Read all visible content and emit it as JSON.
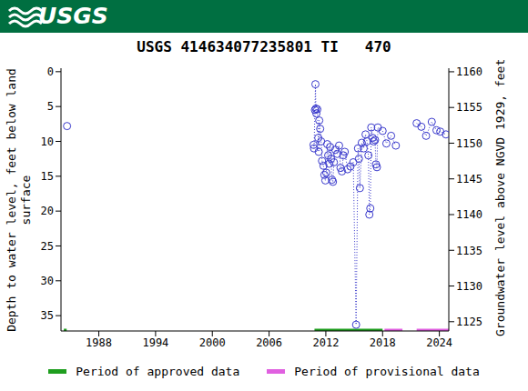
{
  "chart_data": {
    "type": "line",
    "logo": "USGS",
    "title": "USGS 414634077235801 TI   470",
    "ylabel": "Depth to water level, feet below land surface",
    "y2label": "Groundwater level above NGVD 1929, feet",
    "x": [
      1984.64,
      1984.64,
      2010.7,
      2010.75,
      2010.85,
      2010.9,
      2010.95,
      2011.0,
      2011.1,
      2011.2,
      2011.25,
      2011.3,
      2011.4,
      2011.5,
      2011.6,
      2011.75,
      2011.85,
      2011.95,
      2012.05,
      2012.15,
      2012.25,
      2012.35,
      2012.45,
      2012.55,
      2012.65,
      2012.75,
      2012.85,
      2013.0,
      2013.2,
      2013.4,
      2013.55,
      2013.7,
      2013.85,
      2014.0,
      2014.3,
      2014.6,
      2014.9,
      2015.2,
      2015.4,
      2015.5,
      2015.6,
      2015.8,
      2016.0,
      2016.2,
      2016.35,
      2016.5,
      2016.6,
      2016.7,
      2016.8,
      2016.95,
      2017.05,
      2017.2,
      2017.3,
      2017.4,
      2017.5,
      2018.0,
      2018.4,
      2018.9,
      2019.4,
      2019.4,
      2021.6,
      2022.1,
      2022.6,
      2023.2,
      2023.7,
      2024.1,
      2024.7
    ],
    "values": [
      7.8,
      null,
      10.5,
      11.0,
      5.5,
      1.8,
      5.3,
      6.0,
      5.4,
      9.5,
      11.5,
      7.0,
      8.2,
      10.0,
      12.8,
      13.5,
      14.8,
      15.6,
      14.5,
      10.4,
      12.0,
      13.2,
      10.8,
      12.5,
      15.5,
      15.8,
      13.0,
      11.2,
      11.8,
      10.6,
      13.8,
      14.3,
      12.0,
      11.5,
      14.0,
      13.6,
      13.0,
      36.3,
      11.0,
      12.5,
      16.7,
      10.2,
      11.0,
      9.0,
      10.0,
      12.0,
      20.5,
      19.6,
      8.0,
      9.5,
      10.0,
      9.8,
      13.3,
      13.7,
      8.0,
      8.5,
      10.3,
      9.2,
      10.6,
      null,
      7.4,
      7.9,
      9.2,
      7.2,
      8.4,
      8.6,
      9.0
    ],
    "color": "#3a3acc",
    "marker": "open_circle",
    "line_style": "dotted",
    "xlim": [
      1984,
      2025
    ],
    "xticks": [
      1988,
      1994,
      2000,
      2006,
      2012,
      2018,
      2024
    ],
    "ylim": [
      -0.5,
      37.2
    ],
    "yticks": [
      0,
      5,
      10,
      15,
      20,
      25,
      30,
      35
    ],
    "y2lim": [
      1123.7,
      1160.5
    ],
    "y2ticks": [
      1125,
      1130,
      1135,
      1140,
      1145,
      1150,
      1155,
      1160
    ],
    "grid": false,
    "periods": [
      {
        "name": "Period of approved data",
        "color": "#1f9e1f",
        "ranges": [
          [
            1984.3,
            1984.6
          ],
          [
            2010.8,
            2018.0
          ]
        ]
      },
      {
        "name": "Period of provisional data",
        "color": "#e060e0",
        "ranges": [
          [
            2018.2,
            2020.1
          ],
          [
            2021.6,
            2025
          ]
        ]
      }
    ]
  }
}
